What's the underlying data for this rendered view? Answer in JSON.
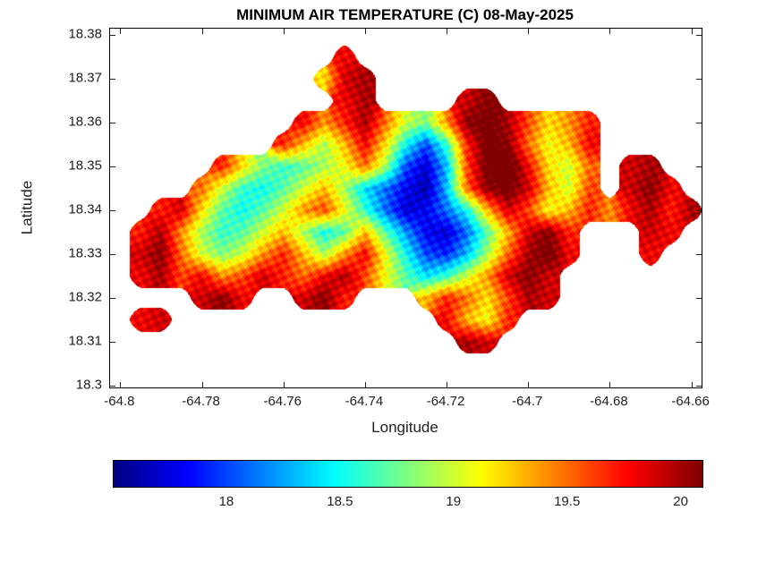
{
  "chart_data": {
    "type": "heatmap",
    "title": "MINIMUM AIR TEMPERATURE (C) 08-May-2025",
    "xlabel": "Longitude",
    "ylabel": "Latitude",
    "units": "C",
    "xlim": [
      -64.8025,
      -64.6575
    ],
    "ylim": [
      18.2995,
      18.3815
    ],
    "xticks": [
      -64.8,
      -64.78,
      -64.76,
      -64.74,
      -64.72,
      -64.7,
      -64.68,
      -64.66
    ],
    "xtick_labels": [
      "-64.8",
      "-64.78",
      "-64.76",
      "-64.74",
      "-64.72",
      "-64.7",
      "-64.68",
      "-64.66"
    ],
    "yticks": [
      18.38,
      18.37,
      18.36,
      18.35,
      18.34,
      18.33,
      18.32,
      18.31,
      18.3
    ],
    "ytick_labels": [
      "18.38",
      "18.37",
      "18.36",
      "18.35",
      "18.34",
      "18.33",
      "18.32",
      "18.31",
      "18.3"
    ],
    "colormap": "jet",
    "clim": [
      17.5,
      20.1
    ],
    "grid_lines": "off",
    "colorbar": {
      "orientation": "horizontal",
      "ticks": [
        18,
        18.5,
        19,
        19.5,
        20
      ],
      "tick_labels": [
        "18",
        "18.5",
        "19",
        "19.5",
        "20"
      ]
    },
    "grid": {
      "comment": "Coarse sampled min air temperature (C) over island; null = sea/no data. Rows north-to-south.",
      "lon_start": -64.795,
      "lon_step": 0.005,
      "lat_start": 18.38,
      "lat_step": -0.005,
      "values": [
        [
          null,
          null,
          null,
          null,
          null,
          null,
          null,
          null,
          null,
          null,
          null,
          null,
          null,
          null,
          null,
          null,
          null,
          null,
          null,
          null,
          null,
          null,
          null,
          null,
          null,
          null,
          null,
          null,
          null
        ],
        [
          null,
          null,
          null,
          null,
          null,
          null,
          null,
          null,
          null,
          null,
          19.8,
          null,
          null,
          null,
          null,
          null,
          null,
          null,
          null,
          null,
          null,
          null,
          null,
          null,
          null,
          null,
          null,
          null,
          null
        ],
        [
          null,
          null,
          null,
          null,
          null,
          null,
          null,
          null,
          null,
          19.2,
          19.9,
          20.0,
          null,
          null,
          null,
          null,
          null,
          null,
          null,
          null,
          null,
          null,
          null,
          null,
          null,
          null,
          null,
          null,
          null
        ],
        [
          null,
          null,
          null,
          null,
          null,
          null,
          null,
          null,
          null,
          null,
          19.8,
          20.0,
          null,
          null,
          null,
          null,
          19.9,
          20.1,
          null,
          null,
          null,
          null,
          null,
          null,
          null,
          null,
          null,
          null,
          null
        ],
        [
          null,
          null,
          null,
          null,
          null,
          null,
          null,
          null,
          19.8,
          19.4,
          19.7,
          20.0,
          19.5,
          19.0,
          18.8,
          19.4,
          20.1,
          20.2,
          20.0,
          19.6,
          19.2,
          19.4,
          19.7,
          null,
          null,
          null,
          null,
          null,
          null
        ],
        [
          null,
          null,
          null,
          null,
          null,
          null,
          null,
          19.7,
          19.3,
          18.9,
          19.3,
          19.8,
          19.2,
          18.5,
          18.0,
          18.6,
          19.7,
          20.2,
          20.1,
          19.5,
          19.1,
          19.3,
          19.8,
          null,
          null,
          null,
          null,
          null,
          null
        ],
        [
          null,
          null,
          null,
          null,
          19.7,
          19.2,
          18.8,
          18.6,
          18.7,
          18.9,
          19.1,
          19.5,
          18.9,
          18.0,
          17.7,
          18.3,
          19.6,
          20.2,
          20.3,
          19.8,
          19.2,
          19.0,
          19.5,
          null,
          19.9,
          20.0,
          null,
          null,
          null
        ],
        [
          null,
          null,
          null,
          19.5,
          19.0,
          18.6,
          18.5,
          18.7,
          19.0,
          19.3,
          18.9,
          18.4,
          18.1,
          17.8,
          17.6,
          18.3,
          19.5,
          20.1,
          20.2,
          19.9,
          19.3,
          19.0,
          19.6,
          null,
          19.9,
          20.1,
          19.8,
          null,
          null
        ],
        [
          null,
          19.7,
          19.9,
          19.2,
          18.7,
          18.5,
          18.7,
          19.0,
          19.4,
          19.6,
          19.1,
          18.6,
          18.1,
          17.7,
          17.8,
          18.1,
          18.5,
          19.3,
          19.9,
          19.6,
          19.1,
          19.3,
          19.7,
          19.4,
          19.8,
          20.0,
          19.7,
          20.0,
          null
        ],
        [
          19.7,
          20.0,
          19.4,
          18.9,
          18.6,
          18.7,
          19.0,
          19.3,
          18.9,
          18.5,
          18.7,
          19.3,
          18.7,
          18.2,
          17.8,
          17.7,
          18.1,
          18.7,
          19.3,
          19.9,
          20.1,
          19.7,
          null,
          null,
          null,
          19.9,
          19.8,
          null,
          null
        ],
        [
          19.9,
          20.1,
          19.5,
          19.0,
          18.8,
          19.0,
          19.4,
          19.7,
          19.3,
          18.9,
          19.4,
          19.8,
          19.1,
          18.5,
          18.0,
          17.9,
          18.3,
          18.9,
          19.5,
          20.0,
          20.2,
          19.8,
          null,
          null,
          null,
          19.8,
          null,
          null,
          null
        ],
        [
          19.8,
          20.0,
          19.6,
          19.8,
          19.4,
          19.6,
          19.9,
          19.7,
          19.5,
          19.8,
          20.0,
          19.6,
          19.1,
          18.7,
          18.4,
          18.6,
          19.0,
          19.4,
          19.9,
          20.1,
          19.9,
          null,
          null,
          null,
          null,
          null,
          null,
          null,
          null
        ],
        [
          null,
          null,
          null,
          19.9,
          20.1,
          19.8,
          null,
          null,
          19.9,
          20.1,
          19.7,
          null,
          null,
          null,
          19.3,
          19.7,
          19.5,
          19.2,
          19.6,
          20.0,
          19.9,
          null,
          null,
          null,
          null,
          null,
          null,
          null,
          null
        ],
        [
          19.8,
          19.9,
          null,
          null,
          null,
          null,
          null,
          null,
          null,
          null,
          null,
          null,
          null,
          null,
          null,
          19.8,
          19.3,
          19.1,
          19.7,
          null,
          null,
          null,
          null,
          null,
          null,
          null,
          null,
          null,
          null
        ],
        [
          null,
          null,
          null,
          null,
          null,
          null,
          null,
          null,
          null,
          null,
          null,
          null,
          null,
          null,
          null,
          null,
          20.0,
          19.9,
          null,
          null,
          null,
          null,
          null,
          null,
          null,
          null,
          null,
          null,
          null
        ],
        [
          null,
          null,
          null,
          null,
          null,
          null,
          null,
          null,
          null,
          null,
          null,
          null,
          null,
          null,
          null,
          null,
          null,
          null,
          null,
          null,
          null,
          null,
          null,
          null,
          null,
          null,
          null,
          null,
          null
        ],
        [
          null,
          null,
          null,
          null,
          null,
          null,
          null,
          null,
          null,
          null,
          null,
          null,
          null,
          null,
          null,
          null,
          null,
          null,
          null,
          null,
          null,
          null,
          null,
          null,
          null,
          null,
          null,
          null,
          null
        ]
      ]
    }
  }
}
